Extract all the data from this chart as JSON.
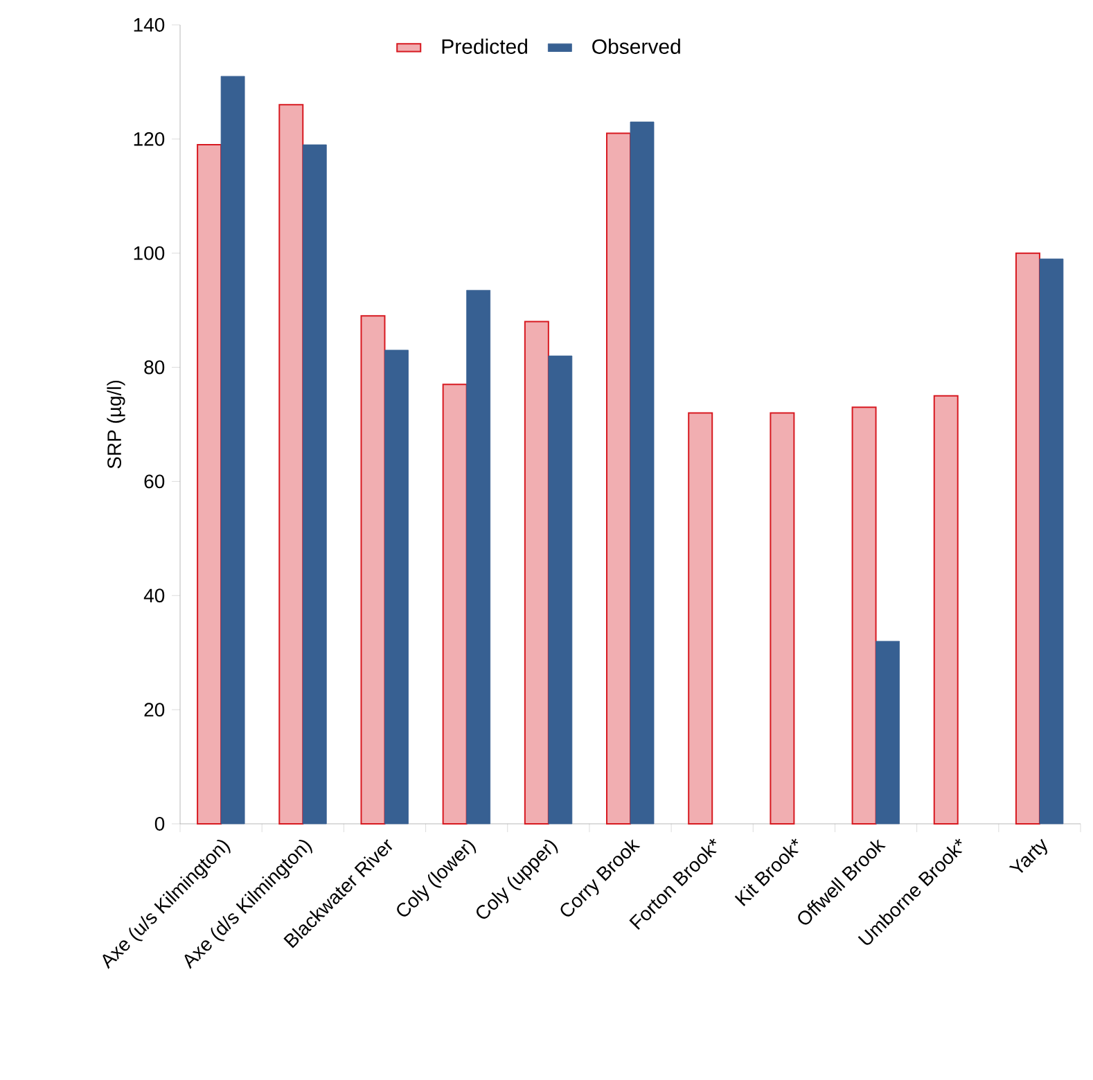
{
  "chart_data": {
    "type": "bar",
    "ylabel": "SRP (µg/l)",
    "categories": [
      "Axe (u/s Kilmington)",
      "Axe (d/s Kilmington)",
      "Blackwater River",
      "Coly (lower)",
      "Coly (upper)",
      "Corry Brook",
      "Forton Brook*",
      "Kit Brook*",
      "Offwell Brook",
      "Umborne Brook*",
      "Yarty"
    ],
    "series": [
      {
        "name": "Predicted",
        "color": "#d71920",
        "values": [
          119,
          126,
          89,
          77,
          88,
          121,
          72,
          72,
          73,
          75,
          100
        ]
      },
      {
        "name": "Observed",
        "color": "#376092",
        "values": [
          131,
          119,
          83,
          93.5,
          82,
          123,
          null,
          null,
          32,
          null,
          99
        ]
      }
    ],
    "ylim": [
      0,
      140
    ],
    "yticks": [
      0,
      20,
      40,
      60,
      80,
      100,
      120,
      140
    ],
    "grid": false,
    "legend": "top"
  }
}
